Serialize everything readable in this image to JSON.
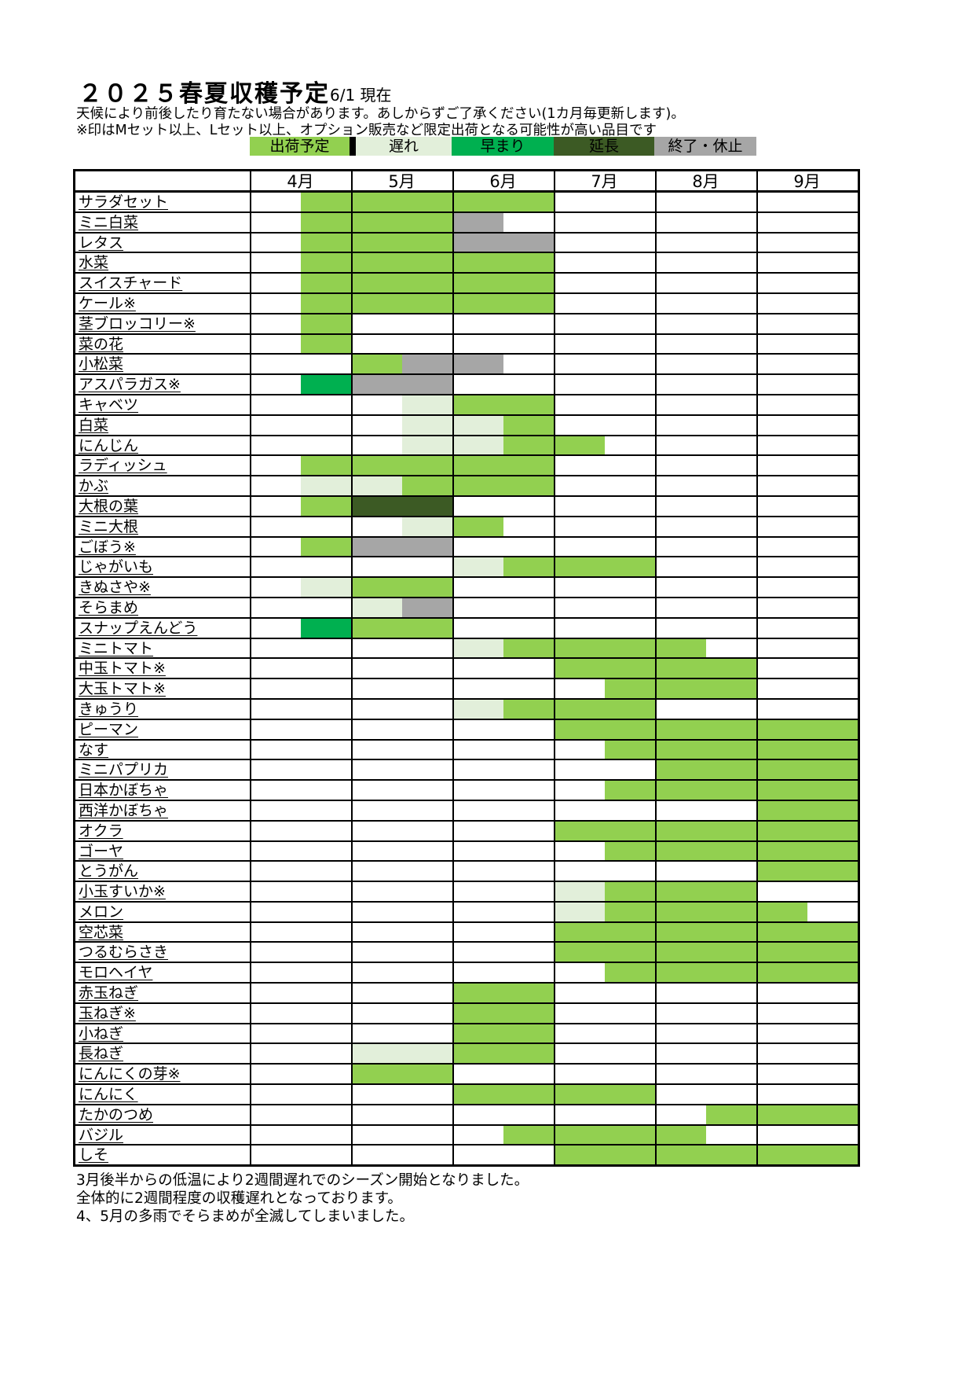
{
  "page": {
    "title": "２０２５春夏収穫予定",
    "as_of": "6/1 現在",
    "header_notes": [
      "天候により前後したり育たない場合があります。あしからずご了承ください(1カ月毎更新します)。",
      "※印はMセット以上、Lセット以上、オプション販売など限定出荷となる可能性が高い品目です"
    ],
    "footer_notes": [
      "3月後半からの低温により2週間遅れでのシーズン開始となりました。",
      "全体的に2週間程度の収穫遅れとなっております。",
      "4、5月の多雨でそらまめが全滅してしまいました。"
    ]
  },
  "chart_data": {
    "type": "gantt",
    "title": "２０２５春夏収穫予定",
    "x_axis": {
      "unit": "month",
      "months": [
        "4月",
        "5月",
        "6月",
        "7月",
        "8月",
        "9月"
      ],
      "range": [
        4,
        10
      ],
      "resolution": 0.5
    },
    "grid": "month-columns-and-row-lines",
    "legend_position": "top",
    "legend": [
      {
        "key": "plan",
        "label": "出荷予定",
        "color": "#92d050",
        "text_color": "#000000"
      },
      {
        "key": "late",
        "label": "遅れ",
        "color": "#e2efda",
        "text_color": "#000000"
      },
      {
        "key": "early",
        "label": "早まり",
        "color": "#00b050",
        "text_color": "#000000"
      },
      {
        "key": "extend",
        "label": "延長",
        "color": "#3c5a24",
        "text_color": "#000000"
      },
      {
        "key": "stop",
        "label": "終了・休止",
        "color": "#a6a6a6",
        "text_color": "#000000"
      }
    ],
    "rows": [
      {
        "name": "サラダセット",
        "segments": [
          {
            "from": 4.5,
            "to": 7,
            "status": "plan"
          }
        ]
      },
      {
        "name": "ミニ白菜",
        "segments": [
          {
            "from": 4.5,
            "to": 6,
            "status": "plan"
          },
          {
            "from": 6,
            "to": 6.5,
            "status": "stop"
          }
        ]
      },
      {
        "name": "レタス",
        "segments": [
          {
            "from": 4.5,
            "to": 6,
            "status": "plan"
          },
          {
            "from": 6,
            "to": 7,
            "status": "stop"
          }
        ]
      },
      {
        "name": "水菜",
        "segments": [
          {
            "from": 4.5,
            "to": 7,
            "status": "plan"
          }
        ]
      },
      {
        "name": "スイスチャード",
        "segments": [
          {
            "from": 4.5,
            "to": 7,
            "status": "plan"
          }
        ]
      },
      {
        "name": "ケール※",
        "segments": [
          {
            "from": 4.5,
            "to": 7,
            "status": "plan"
          }
        ]
      },
      {
        "name": "茎ブロッコリー※",
        "segments": [
          {
            "from": 4.5,
            "to": 5,
            "status": "plan"
          }
        ]
      },
      {
        "name": "菜の花",
        "segments": [
          {
            "from": 4.5,
            "to": 5,
            "status": "plan"
          }
        ]
      },
      {
        "name": "小松菜",
        "segments": [
          {
            "from": 5,
            "to": 5.5,
            "status": "plan"
          },
          {
            "from": 5.5,
            "to": 6.5,
            "status": "stop"
          }
        ]
      },
      {
        "name": "アスパラガス※",
        "segments": [
          {
            "from": 4.5,
            "to": 5,
            "status": "early"
          },
          {
            "from": 5,
            "to": 6,
            "status": "stop"
          }
        ]
      },
      {
        "name": "キャベツ",
        "segments": [
          {
            "from": 5.5,
            "to": 6,
            "status": "late"
          },
          {
            "from": 6,
            "to": 7,
            "status": "plan"
          }
        ]
      },
      {
        "name": "白菜",
        "segments": [
          {
            "from": 5.5,
            "to": 6.5,
            "status": "late"
          },
          {
            "from": 6.5,
            "to": 7,
            "status": "plan"
          }
        ]
      },
      {
        "name": "にんじん",
        "segments": [
          {
            "from": 5.5,
            "to": 6.5,
            "status": "late"
          },
          {
            "from": 6.5,
            "to": 7.5,
            "status": "plan"
          }
        ]
      },
      {
        "name": "ラディッシュ",
        "segments": [
          {
            "from": 4.5,
            "to": 7,
            "status": "plan"
          }
        ]
      },
      {
        "name": "かぶ",
        "segments": [
          {
            "from": 4.5,
            "to": 5.5,
            "status": "late"
          },
          {
            "from": 5.5,
            "to": 7,
            "status": "plan"
          }
        ]
      },
      {
        "name": "大根の葉",
        "segments": [
          {
            "from": 4.5,
            "to": 5,
            "status": "plan"
          },
          {
            "from": 5,
            "to": 6,
            "status": "extend"
          }
        ]
      },
      {
        "name": "ミニ大根",
        "segments": [
          {
            "from": 5.5,
            "to": 6,
            "status": "late"
          },
          {
            "from": 6,
            "to": 6.5,
            "status": "plan"
          }
        ]
      },
      {
        "name": "ごぼう※",
        "segments": [
          {
            "from": 4.5,
            "to": 5,
            "status": "plan"
          },
          {
            "from": 5,
            "to": 6,
            "status": "stop"
          }
        ]
      },
      {
        "name": "じゃがいも",
        "segments": [
          {
            "from": 6,
            "to": 6.5,
            "status": "late"
          },
          {
            "from": 6.5,
            "to": 8,
            "status": "plan"
          }
        ]
      },
      {
        "name": "きぬさや※",
        "segments": [
          {
            "from": 4.5,
            "to": 5,
            "status": "late"
          },
          {
            "from": 5,
            "to": 6,
            "status": "plan"
          }
        ]
      },
      {
        "name": "そらまめ",
        "segments": [
          {
            "from": 5,
            "to": 5.5,
            "status": "late"
          },
          {
            "from": 5.5,
            "to": 6,
            "status": "stop"
          }
        ]
      },
      {
        "name": "スナップえんどう",
        "segments": [
          {
            "from": 4.5,
            "to": 5,
            "status": "early"
          },
          {
            "from": 5,
            "to": 6,
            "status": "plan"
          }
        ]
      },
      {
        "name": "ミニトマト",
        "segments": [
          {
            "from": 6,
            "to": 6.5,
            "status": "late"
          },
          {
            "from": 6.5,
            "to": 8.5,
            "status": "plan"
          }
        ]
      },
      {
        "name": "中玉トマト※",
        "segments": [
          {
            "from": 7,
            "to": 9,
            "status": "plan"
          }
        ]
      },
      {
        "name": "大玉トマト※",
        "segments": [
          {
            "from": 7.5,
            "to": 9,
            "status": "plan"
          }
        ]
      },
      {
        "name": "きゅうり",
        "segments": [
          {
            "from": 6,
            "to": 6.5,
            "status": "late"
          },
          {
            "from": 6.5,
            "to": 8,
            "status": "plan"
          }
        ]
      },
      {
        "name": "ピーマン",
        "segments": [
          {
            "from": 7,
            "to": 10,
            "status": "plan"
          }
        ]
      },
      {
        "name": "なす",
        "segments": [
          {
            "from": 7.5,
            "to": 10,
            "status": "plan"
          }
        ]
      },
      {
        "name": "ミニパプリカ",
        "segments": [
          {
            "from": 8,
            "to": 10,
            "status": "plan"
          }
        ]
      },
      {
        "name": "日本かぼちゃ",
        "segments": [
          {
            "from": 7.5,
            "to": 10,
            "status": "plan"
          }
        ]
      },
      {
        "name": "西洋かぼちゃ",
        "segments": [
          {
            "from": 9,
            "to": 10,
            "status": "plan"
          }
        ]
      },
      {
        "name": "オクラ",
        "segments": [
          {
            "from": 7,
            "to": 10,
            "status": "plan"
          }
        ]
      },
      {
        "name": "ゴーヤ",
        "segments": [
          {
            "from": 7.5,
            "to": 10,
            "status": "plan"
          }
        ]
      },
      {
        "name": "とうがん",
        "segments": [
          {
            "from": 9,
            "to": 10,
            "status": "plan"
          }
        ]
      },
      {
        "name": "小玉すいか※",
        "segments": [
          {
            "from": 7,
            "to": 7.5,
            "status": "late"
          },
          {
            "from": 7.5,
            "to": 9,
            "status": "plan"
          }
        ]
      },
      {
        "name": "メロン",
        "segments": [
          {
            "from": 7,
            "to": 7.5,
            "status": "late"
          },
          {
            "from": 7.5,
            "to": 9.5,
            "status": "plan"
          }
        ]
      },
      {
        "name": "空芯菜",
        "segments": [
          {
            "from": 7,
            "to": 10,
            "status": "plan"
          }
        ]
      },
      {
        "name": "つるむらさき",
        "segments": [
          {
            "from": 7,
            "to": 10,
            "status": "plan"
          }
        ]
      },
      {
        "name": "モロヘイヤ",
        "segments": [
          {
            "from": 7.5,
            "to": 10,
            "status": "plan"
          }
        ]
      },
      {
        "name": "赤玉ねぎ",
        "segments": [
          {
            "from": 6,
            "to": 7,
            "status": "plan"
          }
        ]
      },
      {
        "name": "玉ねぎ※",
        "segments": [
          {
            "from": 6,
            "to": 7,
            "status": "plan"
          }
        ]
      },
      {
        "name": "小ねぎ",
        "segments": [
          {
            "from": 6,
            "to": 7,
            "status": "plan"
          }
        ]
      },
      {
        "name": "長ねぎ",
        "segments": [
          {
            "from": 5,
            "to": 6,
            "status": "late"
          },
          {
            "from": 6,
            "to": 7,
            "status": "plan"
          }
        ]
      },
      {
        "name": "にんにくの芽※",
        "segments": [
          {
            "from": 5,
            "to": 6,
            "status": "plan"
          }
        ]
      },
      {
        "name": "にんにく",
        "segments": [
          {
            "from": 6,
            "to": 8,
            "status": "plan"
          }
        ]
      },
      {
        "name": "たかのつめ",
        "segments": [
          {
            "from": 8.5,
            "to": 10,
            "status": "plan"
          }
        ]
      },
      {
        "name": "バジル",
        "segments": [
          {
            "from": 6.5,
            "to": 8.5,
            "status": "plan"
          }
        ]
      },
      {
        "name": "しそ",
        "segments": [
          {
            "from": 7,
            "to": 10,
            "status": "plan"
          }
        ]
      }
    ]
  }
}
